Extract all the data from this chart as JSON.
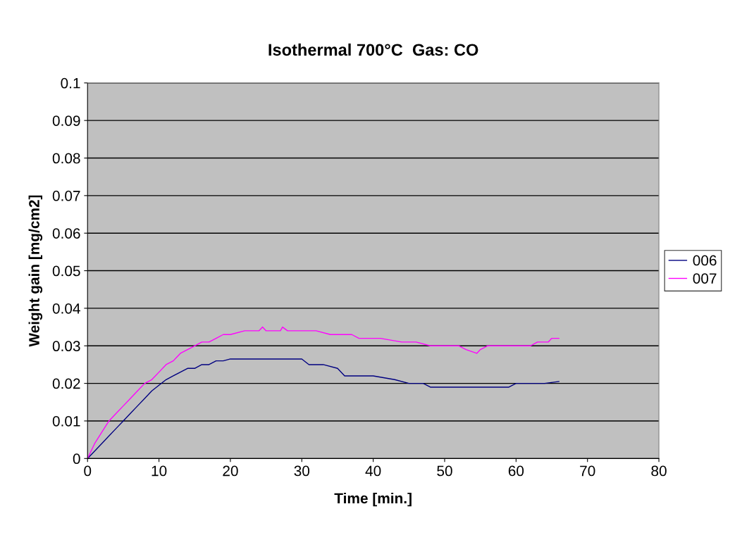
{
  "chart_data": {
    "type": "line",
    "title": "Isothermal 700°C  Gas: CO",
    "xlabel": "Time [min.]",
    "ylabel": "Weight gain [mg/cm2]",
    "xlim": [
      0,
      80
    ],
    "xticks": [
      0,
      10,
      20,
      30,
      40,
      50,
      60,
      70,
      80
    ],
    "ylim": [
      0,
      0.1
    ],
    "yticks": [
      0,
      0.01,
      0.02,
      0.03,
      0.04,
      0.05,
      0.06,
      0.07,
      0.08,
      0.09,
      0.1
    ],
    "grid": "y",
    "legend": "right",
    "marker": "none",
    "line_style": "solid",
    "series": [
      {
        "name": "006",
        "color": "#000080",
        "x": [
          0,
          1,
          2,
          3,
          4,
          5,
          6,
          7,
          8,
          9,
          10,
          11,
          12,
          13,
          14,
          15,
          16,
          17,
          18,
          19,
          20,
          25,
          30,
          31,
          33,
          35,
          36,
          40,
          43,
          45,
          47,
          48,
          52,
          55,
          59,
          60,
          64,
          66
        ],
        "values": [
          0,
          0.002,
          0.004,
          0.006,
          0.008,
          0.01,
          0.012,
          0.014,
          0.016,
          0.018,
          0.0195,
          0.021,
          0.022,
          0.023,
          0.024,
          0.024,
          0.025,
          0.025,
          0.026,
          0.026,
          0.0265,
          0.0265,
          0.0265,
          0.025,
          0.025,
          0.024,
          0.022,
          0.022,
          0.021,
          0.02,
          0.02,
          0.019,
          0.019,
          0.019,
          0.019,
          0.02,
          0.02,
          0.0205
        ]
      },
      {
        "name": "007",
        "color": "#ff00ff",
        "x": [
          0,
          1,
          2,
          3,
          4,
          5,
          6,
          7,
          8,
          9,
          10,
          11,
          12,
          13,
          14,
          15,
          16,
          17,
          18,
          19,
          20,
          22,
          24,
          24.5,
          25,
          27,
          27.3,
          28,
          32,
          34,
          37,
          38,
          41,
          44,
          46,
          48,
          50,
          52,
          53,
          54.5,
          55,
          56,
          60,
          62,
          63,
          64.5,
          65,
          66
        ],
        "values": [
          0,
          0.004,
          0.007,
          0.01,
          0.012,
          0.014,
          0.016,
          0.018,
          0.02,
          0.021,
          0.023,
          0.025,
          0.026,
          0.028,
          0.029,
          0.03,
          0.031,
          0.031,
          0.032,
          0.033,
          0.033,
          0.034,
          0.034,
          0.035,
          0.034,
          0.034,
          0.035,
          0.034,
          0.034,
          0.033,
          0.033,
          0.032,
          0.032,
          0.031,
          0.031,
          0.03,
          0.03,
          0.03,
          0.029,
          0.028,
          0.029,
          0.03,
          0.03,
          0.03,
          0.031,
          0.031,
          0.032,
          0.032
        ]
      }
    ]
  }
}
